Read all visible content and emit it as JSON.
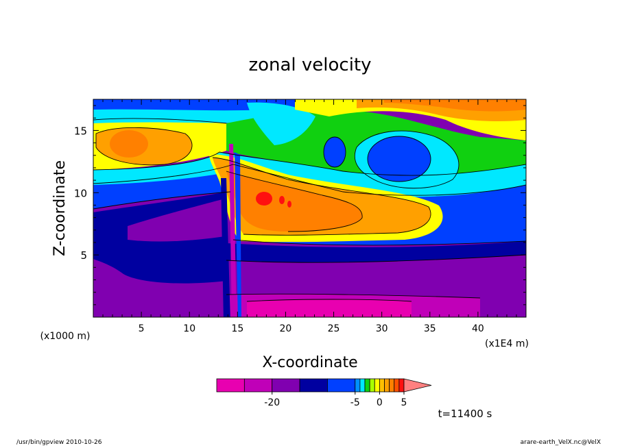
{
  "chart_data": {
    "type": "heatmap",
    "title": "zonal velocity",
    "xlabel": "X-coordinate",
    "ylabel": "Z-coordinate",
    "x_units": "(x1E4 m)",
    "y_units": "(x1000 m)",
    "xlim": [
      0,
      45
    ],
    "ylim": [
      0,
      17.5
    ],
    "x_ticks": [
      "5",
      "10",
      "15",
      "20",
      "25",
      "30",
      "35",
      "40"
    ],
    "y_ticks": [
      "5",
      "10",
      "15"
    ],
    "colorbar": {
      "levels": [
        -30,
        -25,
        -20,
        -15,
        -10,
        -5,
        -4,
        -3,
        -2,
        -1,
        0,
        1,
        2,
        3,
        4,
        5,
        10,
        15,
        20,
        25
      ],
      "colors": [
        "#e800b0",
        "#c000b8",
        "#8000b0",
        "#0000a0",
        "#0040ff",
        "#0090ff",
        "#00e8ff",
        "#10d010",
        "#a8ff00",
        "#ffff00",
        "#ffc000",
        "#ffa000",
        "#ff8000",
        "#ff5000",
        "#ff1010",
        "#ff8080"
      ],
      "labels": [
        "-20",
        "-5",
        "0",
        "5"
      ]
    },
    "regions": [
      {
        "label": "top-left blue",
        "value": -8,
        "color": "#0040ff",
        "x": [
          0,
          12
        ],
        "z": [
          16.5,
          17.5
        ]
      },
      {
        "label": "upper-left orange pool",
        "value": 5,
        "color": "#ff8000",
        "x": [
          1,
          9
        ],
        "z": [
          12.5,
          15.5
        ]
      },
      {
        "label": "upper-middle green",
        "value": -1,
        "color": "#10d010",
        "x": [
          12,
          30
        ],
        "z": [
          12,
          17.5
        ]
      },
      {
        "label": "cyan near x=21",
        "value": -2,
        "color": "#00e8ff",
        "x": [
          18,
          24
        ],
        "z": [
          13.5,
          17.5
        ]
      },
      {
        "label": "blue cell near x=26",
        "value": -5,
        "color": "#0040ff",
        "x": [
          24,
          27
        ],
        "z": [
          12,
          15
        ]
      },
      {
        "label": "blue cell near x=32",
        "value": -5,
        "color": "#0040ff",
        "x": [
          29,
          36
        ],
        "z": [
          11,
          15
        ]
      },
      {
        "label": "upper-right orange",
        "value": 5,
        "color": "#ffa000",
        "x": [
          29,
          45
        ],
        "z": [
          15,
          17.5
        ]
      },
      {
        "label": "mid-level orange jet",
        "value": 6,
        "color": "#ff8000",
        "x": [
          14,
          28
        ],
        "z": [
          7,
          12
        ]
      },
      {
        "label": "jet core red",
        "value": 10,
        "color": "#ff1010",
        "x": [
          17,
          19
        ],
        "z": [
          8.8,
          9.8
        ]
      },
      {
        "label": "mid-left purple",
        "value": -20,
        "color": "#8000b0",
        "x": [
          3,
          14
        ],
        "z": [
          6.5,
          9.5
        ]
      },
      {
        "label": "low-level magenta",
        "value": -25,
        "color": "#e800b0",
        "x": [
          15,
          33
        ],
        "z": [
          0,
          1.6
        ]
      }
    ],
    "annotation": "t=11400 s"
  },
  "footer": {
    "left": "/usr/bin/gpview   2010-10-26",
    "right": "arare-earth_VelX.nc@VelX"
  }
}
